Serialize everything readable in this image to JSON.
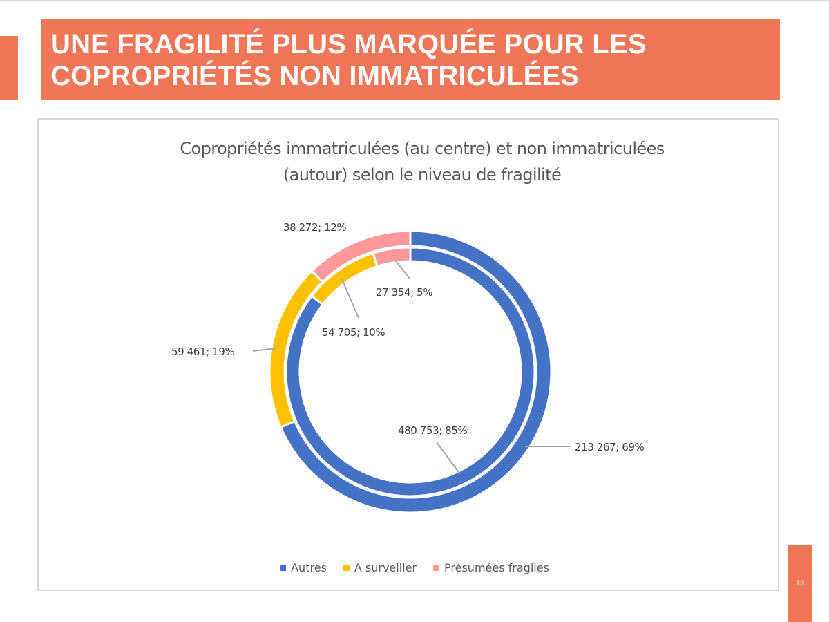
{
  "slide": {
    "title": "UNE FRAGILITÉ PLUS MARQUÉE POUR LES\nCOPROPRIÉTÉS NON IMMATRICULÉES",
    "page_number": "13",
    "accent_color": "#ef7758"
  },
  "chart_data": {
    "type": "pie",
    "variant": "doughnut",
    "title": "Copropriétés immatriculées (au centre) et non immatriculées\n(autour) selon le niveau de fragilité",
    "categories": [
      "Autres",
      "A surveiller",
      "Présumées fragiles"
    ],
    "colors": [
      "#4472c4",
      "#ffc000",
      "#ff9999"
    ],
    "legend_position": "bottom",
    "series": [
      {
        "name": "Non immatriculées (autour)",
        "ring": "outer",
        "values": [
          213267,
          59461,
          38272
        ],
        "percents": [
          69,
          19,
          12
        ],
        "labels": [
          "213 267; 69%",
          "59 461; 19%",
          "38 272; 12%"
        ]
      },
      {
        "name": "Immatriculées (au centre)",
        "ring": "inner",
        "values": [
          480753,
          54705,
          27354
        ],
        "percents": [
          85,
          10,
          5
        ],
        "labels": [
          "480 753; 85%",
          "54 705; 10%",
          "27 354; 5%"
        ]
      }
    ]
  }
}
